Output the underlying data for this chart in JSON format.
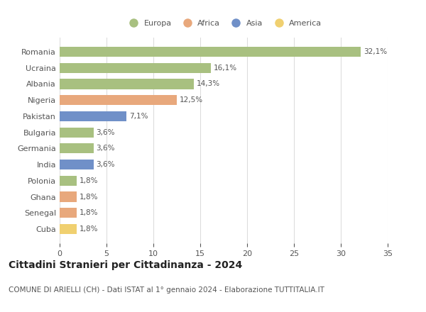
{
  "categories": [
    "Romania",
    "Ucraina",
    "Albania",
    "Nigeria",
    "Pakistan",
    "Bulgaria",
    "Germania",
    "India",
    "Polonia",
    "Ghana",
    "Senegal",
    "Cuba"
  ],
  "values": [
    32.1,
    16.1,
    14.3,
    12.5,
    7.1,
    3.6,
    3.6,
    3.6,
    1.8,
    1.8,
    1.8,
    1.8
  ],
  "labels": [
    "32,1%",
    "16,1%",
    "14,3%",
    "12,5%",
    "7,1%",
    "3,6%",
    "3,6%",
    "3,6%",
    "1,8%",
    "1,8%",
    "1,8%",
    "1,8%"
  ],
  "continents": [
    "Europa",
    "Europa",
    "Europa",
    "Africa",
    "Asia",
    "Europa",
    "Europa",
    "Asia",
    "Europa",
    "Africa",
    "Africa",
    "America"
  ],
  "colors": {
    "Europa": "#a8c080",
    "Africa": "#e8a87c",
    "Asia": "#7090c8",
    "America": "#f0d070"
  },
  "legend_order": [
    "Europa",
    "Africa",
    "Asia",
    "America"
  ],
  "xlim": [
    0,
    35
  ],
  "xticks": [
    0,
    5,
    10,
    15,
    20,
    25,
    30,
    35
  ],
  "title": "Cittadini Stranieri per Cittadinanza - 2024",
  "subtitle": "COMUNE DI ARIELLI (CH) - Dati ISTAT al 1° gennaio 2024 - Elaborazione TUTTITALIA.IT",
  "background_color": "#ffffff",
  "grid_color": "#dddddd",
  "title_fontsize": 10,
  "subtitle_fontsize": 7.5,
  "label_fontsize": 7.5,
  "tick_fontsize": 8,
  "legend_fontsize": 8,
  "bar_height": 0.62
}
